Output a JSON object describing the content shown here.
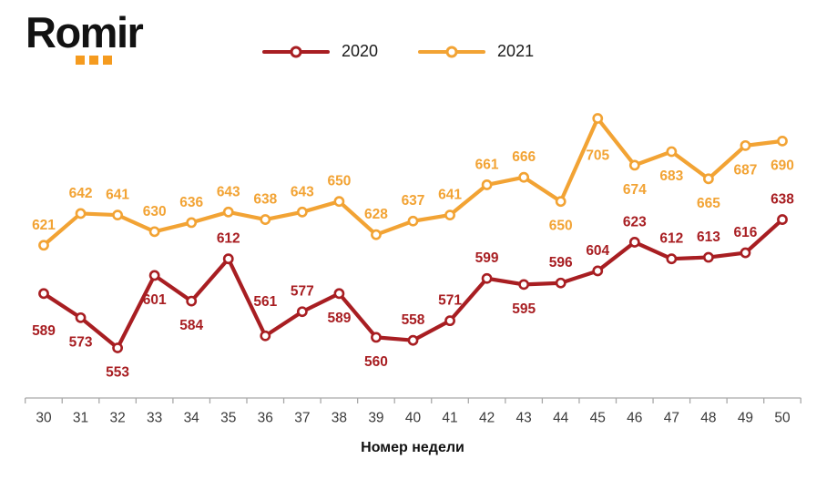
{
  "logo": {
    "text": "Romir"
  },
  "legend": {
    "position": "top-center",
    "items": [
      {
        "label": "2020",
        "color": "#A81E22"
      },
      {
        "label": "2021",
        "color": "#F2A334"
      }
    ]
  },
  "colors": {
    "series_2020": "#A81E22",
    "series_2021": "#F2A334",
    "logo_dots": "#F59B1F",
    "axis": "#A9A9A9",
    "tick_text": "#3A3A3A",
    "marker_fill": "#FFFFFF"
  },
  "chart_data": {
    "type": "line",
    "title": "",
    "xlabel": "Номер недели",
    "ylabel": "",
    "x": [
      30,
      31,
      32,
      33,
      34,
      35,
      36,
      37,
      38,
      39,
      40,
      41,
      42,
      43,
      44,
      45,
      46,
      47,
      48,
      49,
      50
    ],
    "series": [
      {
        "name": "2020",
        "color": "#A81E22",
        "values": [
          589,
          573,
          553,
          601,
          584,
          612,
          561,
          577,
          589,
          560,
          558,
          571,
          599,
          595,
          596,
          604,
          623,
          612,
          613,
          616,
          638
        ],
        "label_positions": [
          "below-far",
          "below",
          "below",
          "below",
          "below",
          "above",
          "above-far",
          "above",
          "below",
          "below",
          "above",
          "above",
          "above",
          "below",
          "above",
          "above",
          "above",
          "above",
          "above",
          "above",
          "above"
        ]
      },
      {
        "name": "2021",
        "color": "#F2A334",
        "values": [
          621,
          642,
          641,
          630,
          636,
          643,
          638,
          643,
          650,
          628,
          637,
          641,
          661,
          666,
          650,
          705,
          674,
          683,
          665,
          687,
          690
        ],
        "label_positions": [
          "above",
          "above",
          "above",
          "above",
          "above",
          "above",
          "above",
          "above",
          "above",
          "above",
          "above",
          "above",
          "above",
          "above",
          "below",
          "below-far",
          "below",
          "below",
          "below",
          "below",
          "below"
        ]
      }
    ],
    "ylim": [
      515,
      725
    ],
    "grid": false,
    "y_axis_shown": false,
    "data_labels_shown": true,
    "legend_position": "top-center"
  }
}
